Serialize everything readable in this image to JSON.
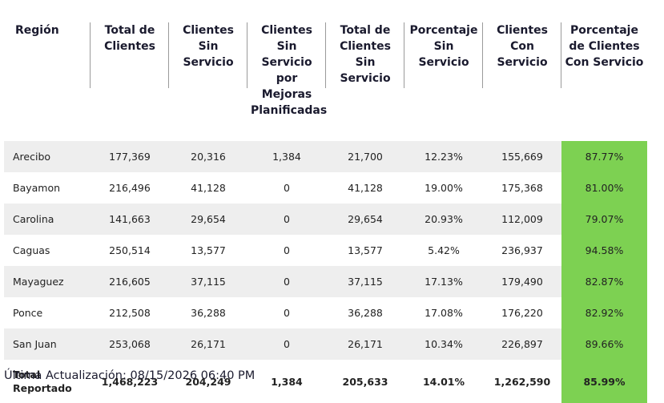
{
  "headers": [
    "Región",
    "Total de Clientes",
    "Clientes Sin Servicio",
    "Clientes Sin Servicio por Mejoras Planificadas",
    "Total de Clientes Sin Servicio",
    "Porcentaje Sin Servicio",
    "Clientes Con Servicio",
    "Porcentaje de Clientes Con Servicio"
  ],
  "rows": [
    [
      "Arecibo",
      "177,369",
      "20,316",
      "1,384",
      "21,700",
      "12.23%",
      "155,669",
      "87.77%"
    ],
    [
      "Bayamon",
      "216,496",
      "41,128",
      "0",
      "41,128",
      "19.00%",
      "175,368",
      "81.00%"
    ],
    [
      "Carolina",
      "141,663",
      "29,654",
      "0",
      "29,654",
      "20.93%",
      "112,009",
      "79.07%"
    ],
    [
      "Caguas",
      "250,514",
      "13,577",
      "0",
      "13,577",
      "5.42%",
      "236,937",
      "94.58%"
    ],
    [
      "Mayaguez",
      "216,605",
      "37,115",
      "0",
      "37,115",
      "17.13%",
      "179,490",
      "82.87%"
    ],
    [
      "Ponce",
      "212,508",
      "36,288",
      "0",
      "36,288",
      "17.08%",
      "176,220",
      "82.92%"
    ],
    [
      "San Juan",
      "253,068",
      "26,171",
      "0",
      "26,171",
      "10.34%",
      "226,897",
      "89.66%"
    ]
  ],
  "total": [
    "Total Reportado",
    "1,468,223",
    "204,249",
    "1,384",
    "205,633",
    "14.01%",
    "1,262,590",
    "85.99%"
  ],
  "footer": "Última Actualización: 08/15/2026 06:40 PM",
  "colors": {
    "highlight": "#7dd152",
    "stripe": "#eeeeee"
  }
}
